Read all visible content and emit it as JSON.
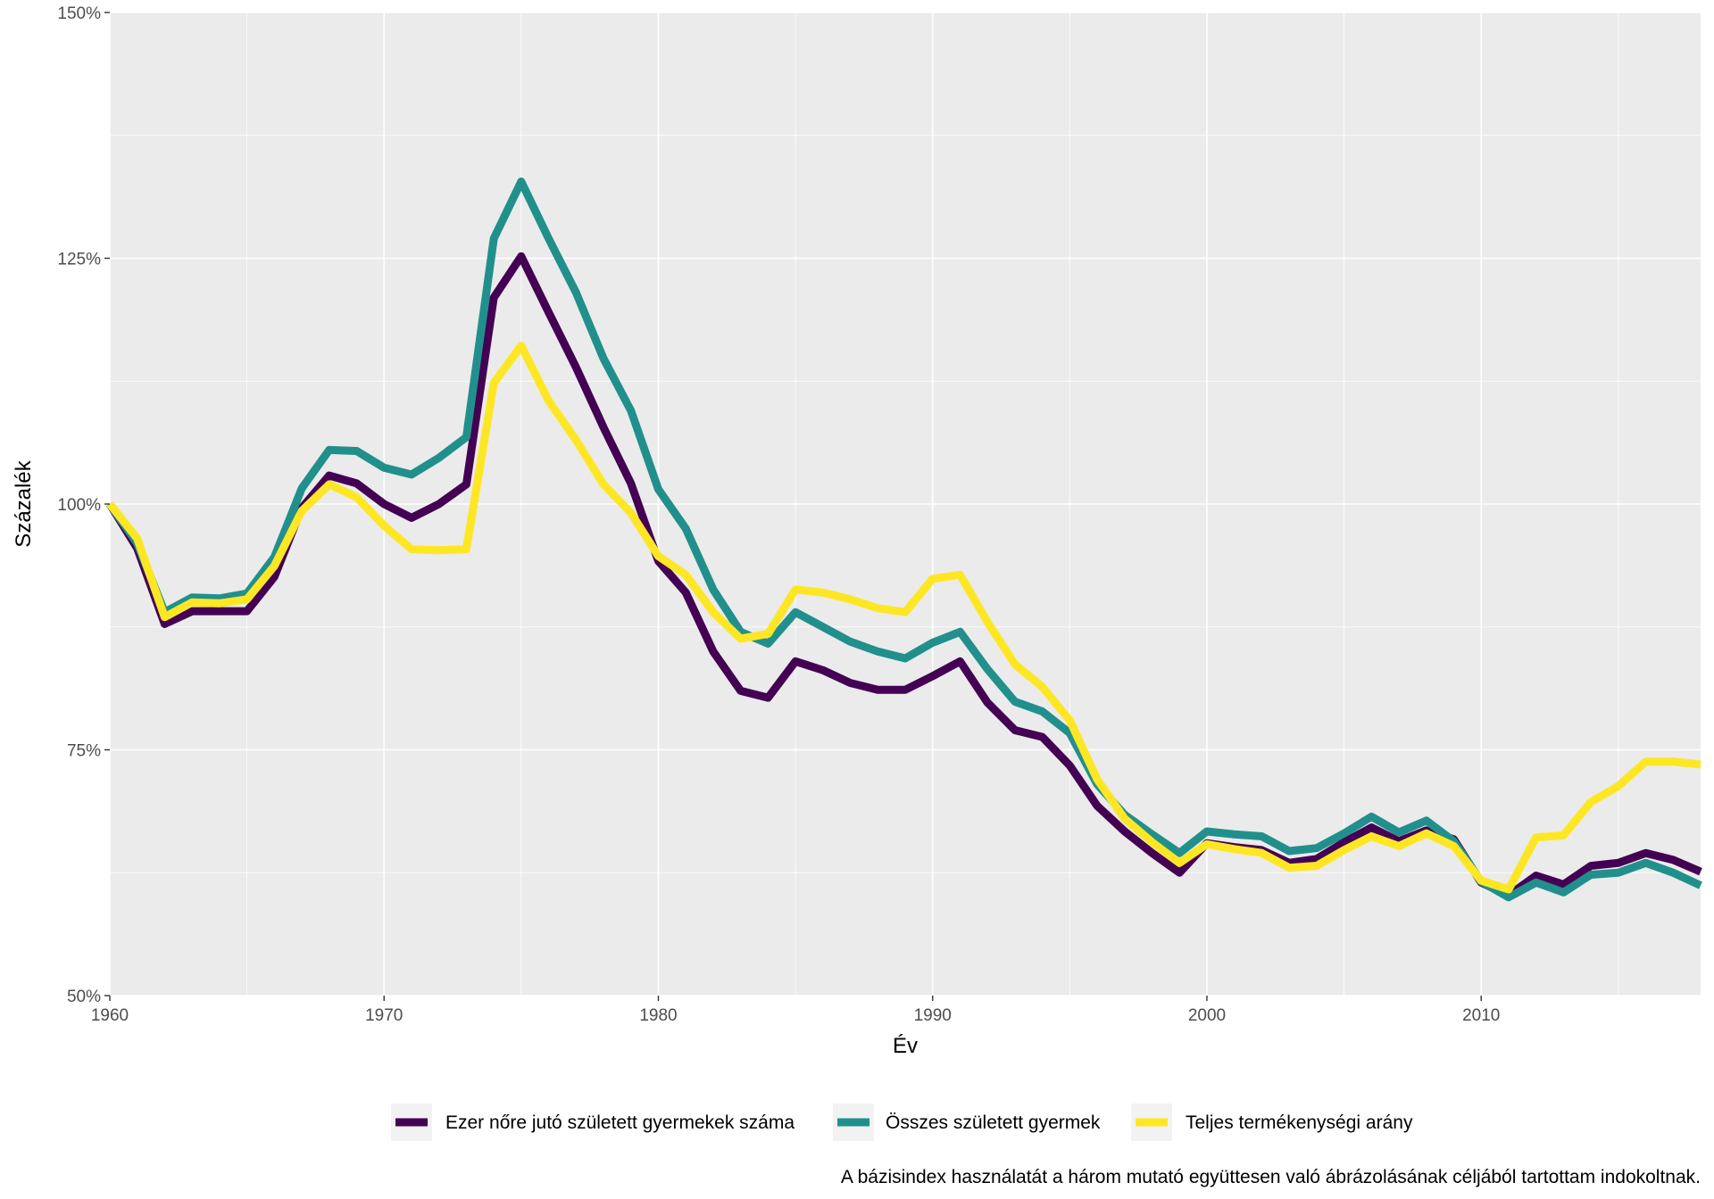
{
  "chart_data": {
    "type": "line",
    "title": "",
    "xlabel": "Év",
    "ylabel": "Százalék",
    "caption": "A bázisindex használatát a három mutató együttesen való ábrázolásának céljából tartottam indokoltnak.",
    "xlim": [
      1960,
      2018
    ],
    "ylim": [
      50,
      150
    ],
    "x_ticks": [
      1960,
      1970,
      1980,
      1990,
      2000,
      2010
    ],
    "y_ticks": [
      50,
      75,
      100,
      125,
      150
    ],
    "y_tick_labels": [
      "50%",
      "75%",
      "100%",
      "125%",
      "150%"
    ],
    "grid": true,
    "legend_position": "bottom",
    "x": [
      1960,
      1961,
      1962,
      1963,
      1964,
      1965,
      1966,
      1967,
      1968,
      1969,
      1970,
      1971,
      1972,
      1973,
      1974,
      1975,
      1976,
      1977,
      1978,
      1979,
      1980,
      1981,
      1982,
      1983,
      1984,
      1985,
      1986,
      1987,
      1988,
      1989,
      1990,
      1991,
      1992,
      1993,
      1994,
      1995,
      1996,
      1997,
      1998,
      1999,
      2000,
      2001,
      2002,
      2003,
      2004,
      2005,
      2006,
      2007,
      2008,
      2009,
      2010,
      2011,
      2012,
      2013,
      2014,
      2015,
      2016,
      2017,
      2018
    ],
    "series": [
      {
        "name": "Ezer nőre jutó született gyermekek száma",
        "color": "#440154",
        "values": [
          100,
          95.5,
          87.8,
          89.1,
          89.1,
          89.1,
          92.6,
          99.6,
          102.9,
          102.1,
          100.0,
          98.6,
          100.0,
          102.0,
          121.0,
          125.2,
          119.5,
          113.9,
          107.8,
          102.1,
          94.2,
          91.0,
          85.0,
          81.0,
          80.3,
          84.0,
          83.1,
          81.8,
          81.1,
          81.1,
          82.5,
          84.0,
          79.8,
          77.0,
          76.3,
          73.4,
          69.3,
          66.7,
          64.5,
          62.5,
          65.5,
          65.1,
          64.8,
          63.5,
          63.9,
          65.6,
          67.1,
          65.7,
          66.8,
          65.9,
          61.5,
          60.2,
          62.2,
          61.3,
          63.2,
          63.5,
          64.5,
          63.8,
          62.6
        ]
      },
      {
        "name": "Összes született gyermek",
        "color": "#21908C",
        "values": [
          100,
          96.0,
          89.0,
          90.5,
          90.4,
          90.9,
          94.6,
          101.6,
          105.5,
          105.4,
          103.7,
          103.0,
          104.7,
          106.8,
          127.0,
          132.8,
          127.0,
          121.5,
          114.8,
          109.5,
          101.5,
          97.5,
          91.3,
          87.0,
          85.8,
          89.0,
          87.5,
          86.0,
          85.0,
          84.3,
          85.9,
          87.0,
          83.2,
          79.9,
          78.9,
          76.7,
          71.5,
          68.4,
          66.4,
          64.5,
          66.7,
          66.4,
          66.2,
          64.7,
          65.0,
          66.5,
          68.2,
          66.6,
          67.8,
          65.7,
          61.6,
          60.0,
          61.5,
          60.5,
          62.3,
          62.5,
          63.5,
          62.5,
          61.2
        ]
      },
      {
        "name": "Teljes termékenységi arány",
        "color": "#FDE725",
        "values": [
          100,
          96.5,
          88.5,
          90.0,
          89.9,
          90.3,
          93.7,
          99.3,
          102.0,
          100.7,
          97.8,
          95.4,
          95.3,
          95.4,
          112.3,
          116.1,
          110.5,
          106.5,
          102.0,
          99.1,
          94.7,
          92.8,
          89.0,
          86.3,
          86.8,
          91.3,
          91.0,
          90.3,
          89.4,
          89.0,
          92.4,
          92.8,
          88.0,
          83.7,
          81.4,
          78.0,
          72.0,
          68.0,
          65.6,
          63.5,
          65.4,
          64.9,
          64.5,
          63.0,
          63.2,
          64.8,
          66.2,
          65.2,
          66.5,
          65.2,
          61.7,
          60.8,
          66.1,
          66.3,
          69.7,
          71.3,
          73.8,
          73.8,
          73.5
        ]
      }
    ]
  }
}
